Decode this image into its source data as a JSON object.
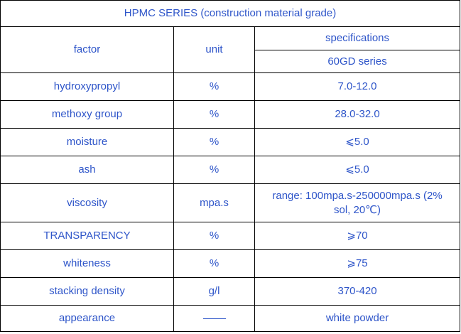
{
  "title": "HPMC SERIES  (construction material grade)",
  "header": {
    "factor": "factor",
    "unit": "unit",
    "specifications": "specifications",
    "series": "60GD series"
  },
  "rows": [
    {
      "factor": "hydroxypropyl",
      "unit": "%",
      "spec": "7.0-12.0"
    },
    {
      "factor": "methoxy group",
      "unit": "%",
      "spec": "28.0-32.0"
    },
    {
      "factor": "moisture",
      "unit": "%",
      "spec": "⩽5.0"
    },
    {
      "factor": "ash",
      "unit": "%",
      "spec": "⩽5.0"
    },
    {
      "factor": "viscosity",
      "unit": "mpa.s",
      "spec": "range:  100mpa.s-250000mpa.s (2% sol, 20℃)"
    },
    {
      "factor": "TRANSPARENCY",
      "unit": "%",
      "spec": "⩾70"
    },
    {
      "factor": "whiteness",
      "unit": "%",
      "spec": "⩾75"
    },
    {
      "factor": "stacking density",
      "unit": "g/l",
      "spec": "370-420"
    },
    {
      "factor": "appearance",
      "unit": "",
      "spec": "white powder"
    }
  ],
  "colors": {
    "text": "#2e55c9",
    "border": "#000000"
  },
  "icons": {
    "appearance_unit": "em-dash-line"
  }
}
